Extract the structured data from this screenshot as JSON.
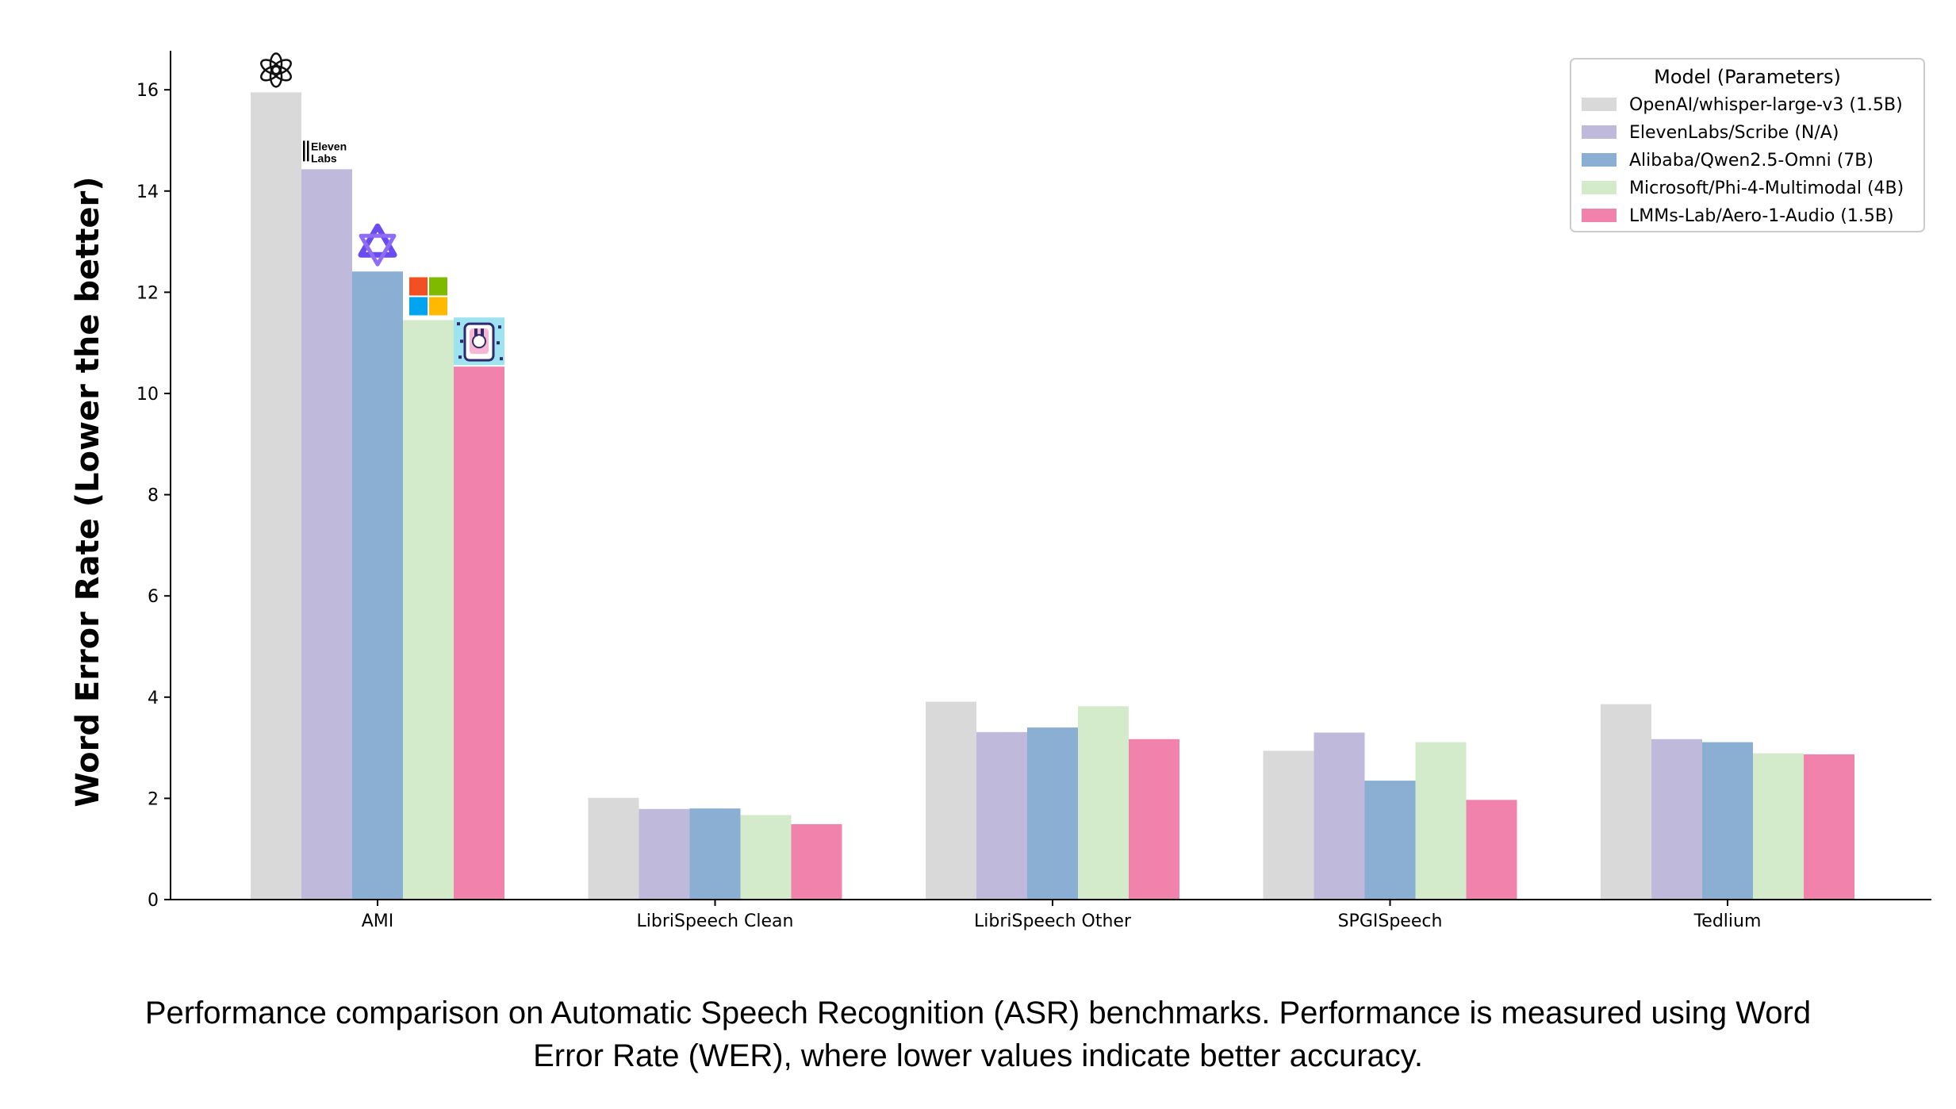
{
  "chart_data": {
    "type": "bar",
    "categories": [
      "AMI",
      "LibriSpeech Clean",
      "LibriSpeech Other",
      "SPGISpeech",
      "Tedlium"
    ],
    "series": [
      {
        "name": "OpenAI/whisper-large-v3 (1.5B)",
        "color": "#d9d9d9",
        "values": [
          15.95,
          2.01,
          3.91,
          2.94,
          3.86
        ]
      },
      {
        "name": "ElevenLabs/Scribe (N/A)",
        "color": "#bfbadb",
        "values": [
          14.43,
          1.79,
          3.31,
          3.3,
          3.17
        ]
      },
      {
        "name": "Alibaba/Qwen2.5-Omni (7B)",
        "color": "#8aafd2",
        "values": [
          12.41,
          1.8,
          3.4,
          2.35,
          3.11
        ]
      },
      {
        "name": "Microsoft/Phi-4-Multimodal (4B)",
        "color": "#d3ebca",
        "values": [
          11.45,
          1.67,
          3.82,
          3.11,
          2.89
        ]
      },
      {
        "name": "LMMs-Lab/Aero-1-Audio (1.5B)",
        "color": "#f082ac",
        "values": [
          10.53,
          1.49,
          3.17,
          1.97,
          2.87
        ]
      }
    ],
    "title": "",
    "xlabel": "",
    "ylabel": "Word Error Rate (Lower the better)",
    "ylim": [
      0,
      16.7
    ],
    "yticks": [
      0,
      2,
      4,
      6,
      8,
      10,
      12,
      14,
      16
    ],
    "grid": false,
    "legend": {
      "title": "Model (Parameters)",
      "placement": "top-right"
    }
  },
  "logos": {
    "openai": "openai-icon",
    "elevenlabs": {
      "icon": "elevenlabs-icon",
      "line1": "Eleven",
      "line2": "Labs"
    },
    "qwen": "qwen-icon",
    "microsoft": {
      "icon": "microsoft-icon",
      "colors": [
        "#f25022",
        "#7fba00",
        "#00a4ef",
        "#ffb900"
      ]
    },
    "aero": "aero-icon"
  },
  "caption": "Performance comparison on Automatic Speech Recognition (ASR) benchmarks. Performance is measured using Word Error Rate (WER), where lower values indicate better accuracy."
}
